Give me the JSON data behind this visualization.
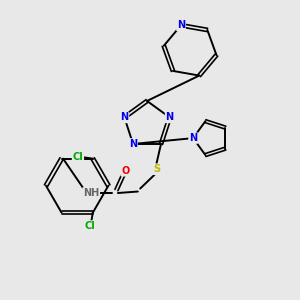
{
  "bg_color": "#e8e8e8",
  "atom_colors": {
    "N": "#0000ee",
    "O": "#ee0000",
    "S": "#bbbb00",
    "Cl": "#00aa00",
    "C": "#000000",
    "H": "#666666"
  },
  "bond_color": "#000000",
  "figsize": [
    3.0,
    3.0
  ],
  "dpi": 100
}
